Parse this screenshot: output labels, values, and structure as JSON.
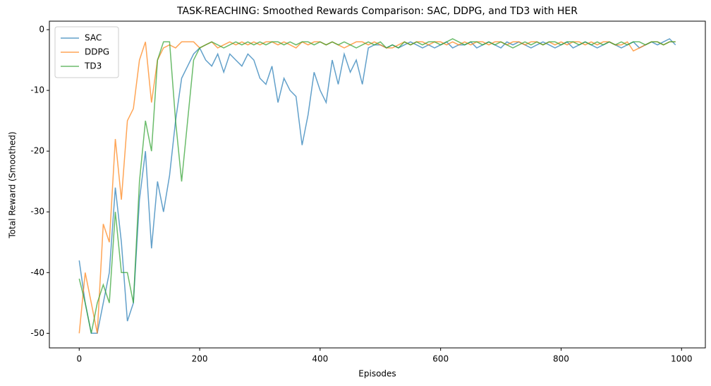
{
  "chart_data": {
    "type": "line",
    "title": "TASK-REACHING: Smoothed Rewards Comparison: SAC, DDPG, and TD3 with HER",
    "x_label": "Episodes",
    "y_label": "Total Reward (Smoothed)",
    "x": [
      0,
      10,
      20,
      30,
      40,
      50,
      60,
      70,
      80,
      90,
      100,
      110,
      120,
      130,
      140,
      150,
      160,
      170,
      180,
      190,
      200,
      210,
      220,
      230,
      240,
      250,
      260,
      270,
      280,
      290,
      300,
      310,
      320,
      330,
      340,
      350,
      360,
      370,
      380,
      390,
      400,
      410,
      420,
      430,
      440,
      450,
      460,
      470,
      480,
      490,
      500,
      510,
      520,
      530,
      540,
      550,
      560,
      570,
      580,
      590,
      600,
      610,
      620,
      630,
      640,
      650,
      660,
      670,
      680,
      690,
      700,
      710,
      720,
      730,
      740,
      750,
      760,
      770,
      780,
      790,
      800,
      810,
      820,
      830,
      840,
      850,
      860,
      870,
      880,
      890,
      900,
      910,
      920,
      930,
      940,
      950,
      960,
      970,
      980,
      990
    ],
    "series": [
      {
        "name": "SAC",
        "color": "#1f77b4",
        "values": [
          -38,
          -45,
          -50,
          -50,
          -45,
          -40,
          -26,
          -35,
          -48,
          -45,
          -28,
          -20,
          -36,
          -25,
          -30,
          -24,
          -15,
          -8,
          -6,
          -4,
          -3,
          -5,
          -6,
          -4,
          -7,
          -4,
          -5,
          -6,
          -4,
          -5,
          -8,
          -9,
          -6,
          -12,
          -8,
          -10,
          -11,
          -19,
          -14,
          -7,
          -10,
          -12,
          -5,
          -9,
          -4,
          -7,
          -5,
          -9,
          -3,
          -2.5,
          -2.5,
          -3,
          -2.5,
          -3,
          -2.5,
          -2,
          -2.5,
          -3,
          -2.5,
          -3,
          -2.5,
          -2,
          -3,
          -2.5,
          -2.5,
          -2,
          -3,
          -2.5,
          -2,
          -2.5,
          -3,
          -2,
          -2.5,
          -2,
          -2.5,
          -3,
          -2.5,
          -2,
          -2.5,
          -3,
          -2.5,
          -2,
          -3,
          -2.5,
          -2,
          -2.5,
          -3,
          -2.5,
          -2,
          -2.5,
          -3,
          -2.5,
          -2,
          -3,
          -2.5,
          -2,
          -2.5,
          -2,
          -1.5,
          -2.5
        ]
      },
      {
        "name": "DDPG",
        "color": "#ff7f0e",
        "values": [
          -50,
          -40,
          -45,
          -50,
          -32,
          -35,
          -18,
          -28,
          -15,
          -13,
          -5,
          -2,
          -12,
          -5,
          -3,
          -2.5,
          -3,
          -2,
          -2,
          -2,
          -3,
          -2.5,
          -2,
          -3,
          -2.5,
          -2,
          -2.5,
          -2,
          -2.5,
          -2,
          -2.5,
          -2,
          -2,
          -2.5,
          -2,
          -2.5,
          -3,
          -2,
          -2.5,
          -2,
          -2,
          -2.5,
          -2,
          -2.5,
          -3,
          -2.5,
          -2,
          -2,
          -2.5,
          -2,
          -2.5,
          -3,
          -3,
          -2.5,
          -2,
          -2.5,
          -2,
          -2,
          -2.5,
          -2,
          -2,
          -2.5,
          -2,
          -2.5,
          -2,
          -2.5,
          -2,
          -2,
          -2.5,
          -2,
          -2,
          -2.5,
          -2,
          -2,
          -2.5,
          -2,
          -2,
          -2.5,
          -2,
          -2.5,
          -2,
          -2.5,
          -2,
          -2,
          -2.5,
          -2,
          -2.5,
          -2,
          -2,
          -2.5,
          -2.5,
          -2,
          -3.5,
          -3,
          -2.5,
          -2,
          -2,
          -2.5,
          -2,
          -2
        ]
      },
      {
        "name": "TD3",
        "color": "#2ca02c",
        "values": [
          -41,
          -45,
          -50,
          -45,
          -42,
          -45,
          -30,
          -40,
          -40,
          -45,
          -25,
          -15,
          -20,
          -5,
          -2,
          -2,
          -15,
          -25,
          -15,
          -5,
          -3,
          -2.5,
          -2,
          -2.5,
          -3,
          -2.5,
          -2,
          -2.5,
          -2,
          -2.5,
          -2,
          -2.5,
          -2,
          -2,
          -2.5,
          -2,
          -2.5,
          -2,
          -2,
          -2.5,
          -2,
          -2.5,
          -2,
          -2.5,
          -2,
          -2.5,
          -3,
          -2.5,
          -2,
          -2.5,
          -2,
          -3,
          -2.5,
          -3,
          -2,
          -2.5,
          -2,
          -2.5,
          -2,
          -2,
          -2.5,
          -2,
          -1.5,
          -2,
          -2.5,
          -2,
          -2,
          -2.5,
          -2,
          -2.5,
          -2,
          -2.5,
          -3,
          -2.5,
          -2,
          -2.5,
          -2,
          -2.5,
          -2,
          -2,
          -2.5,
          -2,
          -2,
          -2.5,
          -2,
          -2.5,
          -2,
          -2.5,
          -2,
          -2.5,
          -2,
          -2.5,
          -2,
          -2,
          -2.5,
          -2,
          -2,
          -2.5,
          -2,
          -2
        ]
      }
    ],
    "xlim": [
      -49.5,
      1039.5
    ],
    "xticks": [
      0,
      200,
      400,
      600,
      800,
      1000
    ],
    "ylim": [
      -52.4,
      1.4
    ],
    "yticks": [
      -50,
      -40,
      -30,
      -20,
      -10,
      0
    ],
    "legend": "upper left",
    "grid": false
  }
}
